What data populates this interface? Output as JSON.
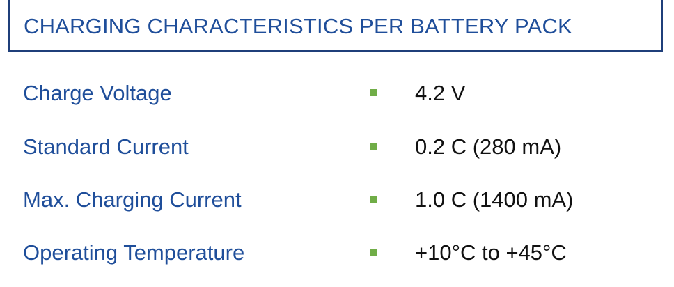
{
  "header": {
    "title": "CHARGING CHARACTERISTICS PER BATTERY PACK"
  },
  "specs": [
    {
      "label": "Charge Voltage",
      "value": "4.2 V"
    },
    {
      "label": "Standard Current",
      "value": "0.2 C (280 mA)"
    },
    {
      "label": "Max. Charging Current",
      "value": "1.0 C (1400 mA)"
    },
    {
      "label": "Operating Temperature",
      "value": "+10°C to +45°C"
    }
  ],
  "colors": {
    "title": "#1f4e9a",
    "border": "#1f3f7a",
    "bullet": "#70ad47",
    "value_text": "#111111"
  }
}
